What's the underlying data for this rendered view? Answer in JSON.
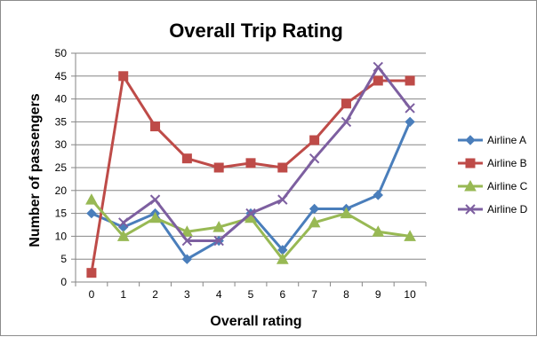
{
  "chart_data": {
    "type": "line",
    "title": "Overall Trip Rating",
    "xlabel": "Overall rating",
    "ylabel": "Number of passengers",
    "x": [
      0,
      1,
      2,
      3,
      4,
      5,
      6,
      7,
      8,
      9,
      10
    ],
    "ylim": [
      0,
      50
    ],
    "yticks": [
      0,
      5,
      10,
      15,
      20,
      25,
      30,
      35,
      40,
      45,
      50
    ],
    "grid": true,
    "legend_position": "right",
    "series": [
      {
        "name": "Airline A",
        "color": "#4a7ebb",
        "marker": "diamond",
        "values": [
          15,
          12,
          15,
          5,
          9,
          15,
          7,
          16,
          16,
          19,
          35
        ]
      },
      {
        "name": "Airline B",
        "color": "#be4b48",
        "marker": "square",
        "values": [
          2,
          45,
          34,
          27,
          25,
          26,
          25,
          31,
          39,
          44,
          44
        ]
      },
      {
        "name": "Airline C",
        "color": "#98b954",
        "marker": "triangle",
        "values": [
          18,
          10,
          14,
          11,
          12,
          14,
          5,
          13,
          15,
          11,
          10
        ]
      },
      {
        "name": "Airline D",
        "color": "#7d5fa0",
        "marker": "x",
        "values": [
          null,
          13,
          18,
          9,
          9,
          15,
          18,
          27,
          35,
          47,
          38
        ]
      }
    ]
  }
}
